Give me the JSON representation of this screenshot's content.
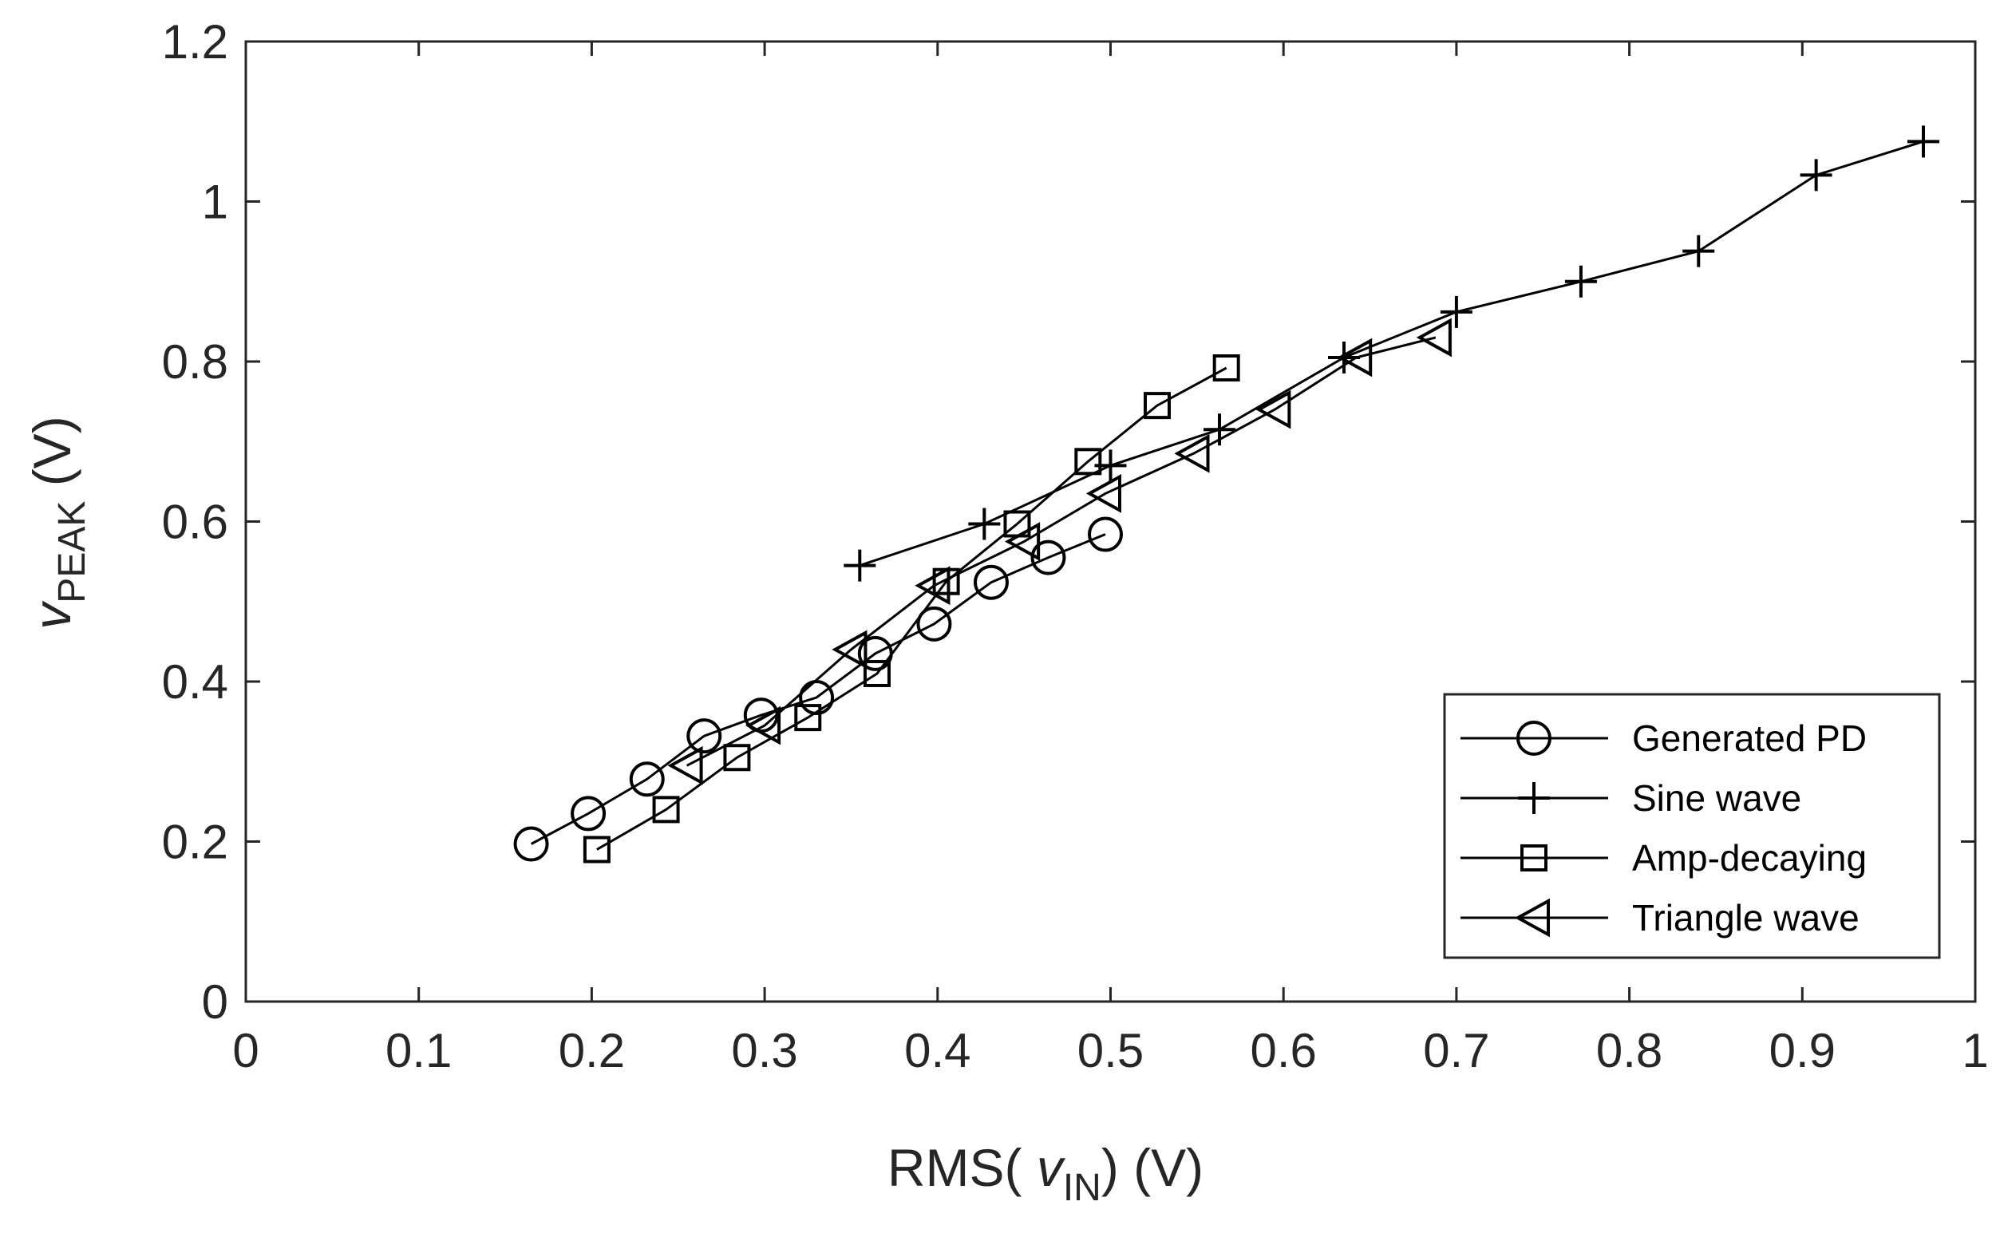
{
  "chart_data": {
    "type": "line",
    "title": "",
    "xlabel": {
      "prefix": "RMS(",
      "var": "v",
      "sub": "IN",
      "suffix": ") (V)"
    },
    "ylabel": {
      "var": "v",
      "sub": "PEAK",
      "suffix": " (V)"
    },
    "xlim": [
      0,
      1
    ],
    "ylim": [
      0,
      1.2
    ],
    "xticks": [
      0,
      0.1,
      0.2,
      0.3,
      0.4,
      0.5,
      0.6,
      0.7,
      0.8,
      0.9,
      1
    ],
    "xtick_labels": [
      "0",
      "0.1",
      "0.2",
      "0.3",
      "0.4",
      "0.5",
      "0.6",
      "0.7",
      "0.8",
      "0.9",
      "1"
    ],
    "yticks": [
      0,
      0.2,
      0.4,
      0.6,
      0.8,
      1,
      1.2
    ],
    "ytick_labels": [
      "0",
      "0.2",
      "0.4",
      "0.6",
      "0.8",
      "1",
      "1.2"
    ],
    "grid": false,
    "legend_position": "bottom-right",
    "series": [
      {
        "name": "Generated PD",
        "marker": "circle",
        "x": [
          0.165,
          0.198,
          0.232,
          0.265,
          0.298,
          0.33,
          0.364,
          0.398,
          0.431,
          0.464,
          0.497
        ],
        "y": [
          0.197,
          0.235,
          0.278,
          0.332,
          0.358,
          0.38,
          0.435,
          0.472,
          0.524,
          0.555,
          0.584
        ]
      },
      {
        "name": "Sine wave",
        "marker": "plus",
        "x": [
          0.355,
          0.427,
          0.5,
          0.563,
          0.635,
          0.7,
          0.772,
          0.84,
          0.908,
          0.97
        ],
        "y": [
          0.545,
          0.597,
          0.67,
          0.715,
          0.805,
          0.862,
          0.9,
          0.938,
          1.033,
          1.075
        ]
      },
      {
        "name": "Amp-decaying",
        "marker": "square",
        "x": [
          0.203,
          0.243,
          0.284,
          0.325,
          0.365,
          0.405,
          0.446,
          0.487,
          0.527,
          0.567
        ],
        "y": [
          0.19,
          0.24,
          0.305,
          0.355,
          0.41,
          0.525,
          0.597,
          0.675,
          0.745,
          0.792
        ]
      },
      {
        "name": "Triangle wave",
        "marker": "triangle-left",
        "x": [
          0.255,
          0.3,
          0.35,
          0.398,
          0.45,
          0.497,
          0.548,
          0.595,
          0.642,
          0.688
        ],
        "y": [
          0.295,
          0.345,
          0.44,
          0.52,
          0.575,
          0.635,
          0.685,
          0.74,
          0.805,
          0.83
        ]
      }
    ]
  }
}
